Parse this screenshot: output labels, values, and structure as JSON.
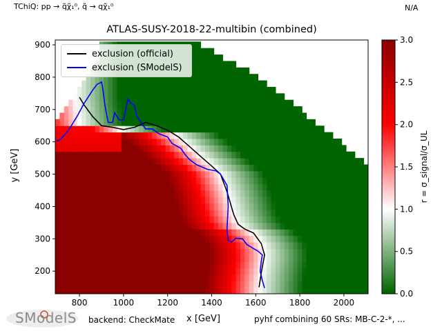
{
  "header": {
    "process": "TChiQ: pp → q̃χ̃₁⁰, q̃ → qχ̃₁⁰",
    "status": "N/A"
  },
  "footer": {
    "logo_text": "SModelS",
    "backend": "backend: CheckMate",
    "combination": "pyhf combining 60 SRs: MB-C-2-*, ..."
  },
  "chart_data": {
    "type": "heatmap",
    "title": "ATLAS-SUSY-2018-22-multibin (combined)",
    "xlabel": "x [GeV]",
    "ylabel": "y [GeV]",
    "xlim": [
      690,
      2110
    ],
    "ylim": [
      130,
      915
    ],
    "xticks": [
      800,
      1000,
      1200,
      1400,
      1600,
      1800,
      2000
    ],
    "yticks": [
      200,
      300,
      400,
      500,
      600,
      700,
      800,
      900
    ],
    "colorbar": {
      "label": "r = σ_signal/σ_UL",
      "range": [
        0.0,
        3.0
      ],
      "ticks": [
        "0.0",
        "0.5",
        "1.0",
        "1.5",
        "2.0",
        "2.5",
        "3.0"
      ],
      "colormap": [
        "#006400",
        "#ffffff",
        "#ff0000",
        "#8b0000"
      ]
    },
    "legend": [
      {
        "name": "exclusion (official)",
        "color": "#000000"
      },
      {
        "name": "exclusion (SModelS)",
        "color": "#0000ff"
      }
    ],
    "series": [
      {
        "name": "exclusion (official)",
        "x": [
          800,
          820,
          860,
          900,
          950,
          1000,
          1050,
          1100,
          1150,
          1200,
          1250,
          1300,
          1350,
          1400,
          1440,
          1470,
          1500,
          1520,
          1550,
          1590,
          1625,
          1640,
          1625,
          1615
        ],
        "y": [
          738,
          715,
          678,
          650,
          645,
          638,
          645,
          660,
          650,
          636,
          615,
          585,
          555,
          525,
          500,
          445,
          375,
          345,
          330,
          318,
          285,
          250,
          195,
          150
        ]
      },
      {
        "name": "exclusion (SModelS)",
        "x": [
          695,
          710,
          750,
          790,
          820,
          860,
          880,
          900,
          905,
          915,
          930,
          950,
          960,
          980,
          1000,
          1020,
          1030,
          1050,
          1060,
          1100,
          1130,
          1160,
          1200,
          1220,
          1260,
          1280,
          1300,
          1330,
          1380,
          1420,
          1440,
          1470,
          1475,
          1470,
          1475,
          1490,
          1510,
          1540,
          1560,
          1590,
          1610,
          1630,
          1625,
          1620,
          1630,
          1640
        ],
        "y": [
          603,
          605,
          635,
          680,
          718,
          760,
          778,
          785,
          768,
          715,
          660,
          660,
          690,
          668,
          668,
          732,
          722,
          713,
          680,
          640,
          640,
          625,
          615,
          595,
          580,
          560,
          545,
          530,
          515,
          510,
          500,
          465,
          400,
          330,
          295,
          290,
          302,
          300,
          282,
          270,
          262,
          250,
          230,
          200,
          170,
          148
        ]
      }
    ]
  }
}
